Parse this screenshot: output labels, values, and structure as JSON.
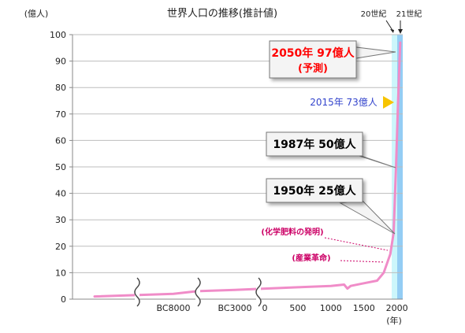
{
  "chart_data": {
    "type": "line",
    "title": "世界人口の推移(推計値)",
    "ylabel": "(億人)",
    "xlabel": "(年)",
    "ylim": [
      0,
      100
    ],
    "yticks": [
      0,
      10,
      20,
      30,
      40,
      50,
      60,
      70,
      80,
      90,
      100
    ],
    "xtick_labels": [
      "BC8000",
      "BC3000",
      "0",
      "500",
      "1000",
      "1500",
      "2000"
    ],
    "grid": "horizontal",
    "axis_breaks": 3,
    "century_bands": [
      {
        "label": "20世紀",
        "color": "#ccf6fb"
      },
      {
        "label": "21世紀",
        "color": "#94cdf4"
      }
    ],
    "series": [
      {
        "color": "#f08cc8",
        "points": [
          {
            "x": -10000,
            "y": 1
          },
          {
            "x": -8000,
            "y": 2
          },
          {
            "x": -5000,
            "y": 3
          },
          {
            "x": -3000,
            "y": 3.5
          },
          {
            "x": 0,
            "y": 4
          },
          {
            "x": 500,
            "y": 4.5
          },
          {
            "x": 1000,
            "y": 5
          },
          {
            "x": 1200,
            "y": 5.5
          },
          {
            "x": 1250,
            "y": 4
          },
          {
            "x": 1300,
            "y": 5
          },
          {
            "x": 1500,
            "y": 6
          },
          {
            "x": 1700,
            "y": 7
          },
          {
            "x": 1800,
            "y": 10
          },
          {
            "x": 1900,
            "y": 17
          },
          {
            "x": 1950,
            "y": 25
          },
          {
            "x": 1987,
            "y": 50
          },
          {
            "x": 2015,
            "y": 73
          },
          {
            "x": 2050,
            "y": 97
          }
        ]
      }
    ],
    "annotations": [
      {
        "line1": "2050年 97億人",
        "line2": "(予測)",
        "color": "#ff0000",
        "x": 2050,
        "y": 95
      },
      {
        "text": "1987年 50億人",
        "color": "#000000",
        "x": 1987,
        "y": 50
      },
      {
        "text": "1950年 25億人",
        "color": "#000000",
        "x": 1950,
        "y": 25
      },
      {
        "text": "2015年 73億人",
        "color": "#3344cc",
        "marker_color": "#f7c400",
        "x": 2015,
        "y": 73
      },
      {
        "text": "(化学肥料の発明)",
        "color": "#cc0066",
        "x": 1900,
        "y": 17
      },
      {
        "text": "(産業革命)",
        "color": "#cc0066",
        "x": 1780,
        "y": 10
      }
    ]
  }
}
